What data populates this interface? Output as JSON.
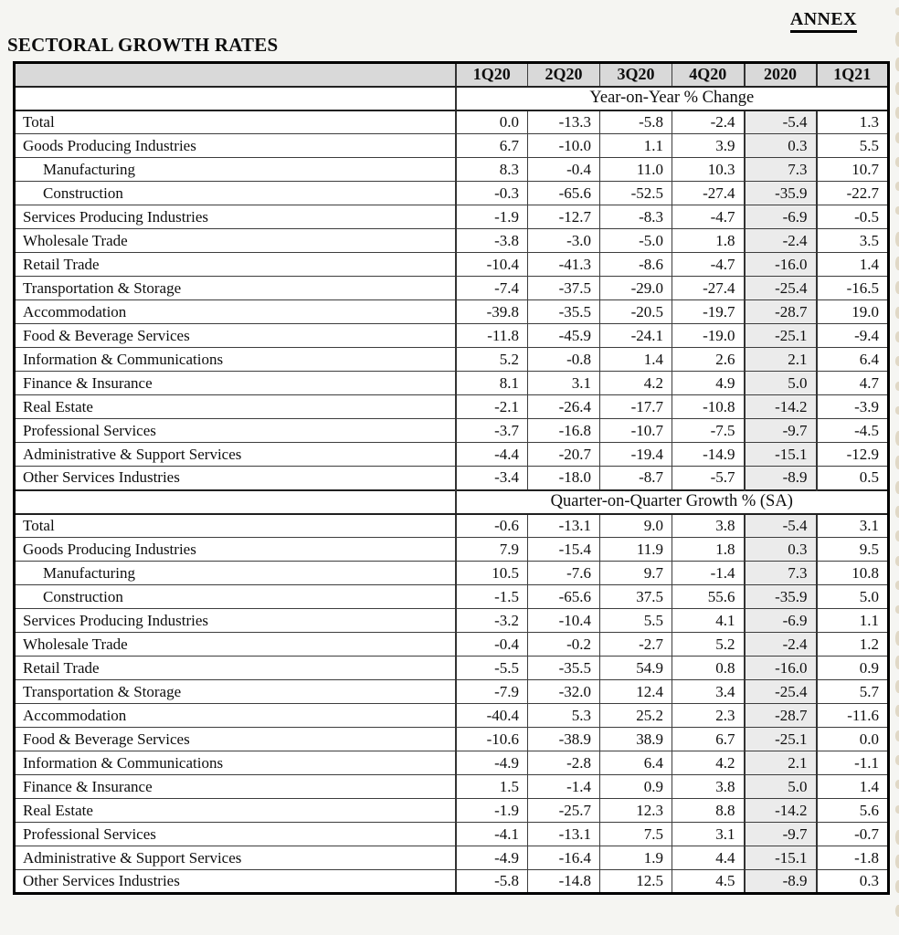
{
  "page": {
    "annex_label": "ANNEX",
    "title": "SECTORAL GROWTH RATES"
  },
  "table": {
    "columns": [
      "1Q20",
      "2Q20",
      "3Q20",
      "4Q20",
      "2020",
      "1Q21"
    ],
    "highlight_column": "2020",
    "sections": [
      {
        "header": "Year-on-Year % Change",
        "rows": [
          {
            "label": "Total",
            "indent": false,
            "values": [
              "0.0",
              "-13.3",
              "-5.8",
              "-2.4",
              "-5.4",
              "1.3"
            ]
          },
          {
            "label": "Goods Producing Industries",
            "indent": false,
            "values": [
              "6.7",
              "-10.0",
              "1.1",
              "3.9",
              "0.3",
              "5.5"
            ]
          },
          {
            "label": "Manufacturing",
            "indent": true,
            "values": [
              "8.3",
              "-0.4",
              "11.0",
              "10.3",
              "7.3",
              "10.7"
            ]
          },
          {
            "label": "Construction",
            "indent": true,
            "values": [
              "-0.3",
              "-65.6",
              "-52.5",
              "-27.4",
              "-35.9",
              "-22.7"
            ]
          },
          {
            "label": "Services Producing Industries",
            "indent": false,
            "values": [
              "-1.9",
              "-12.7",
              "-8.3",
              "-4.7",
              "-6.9",
              "-0.5"
            ]
          },
          {
            "label": "Wholesale Trade",
            "indent": false,
            "values": [
              "-3.8",
              "-3.0",
              "-5.0",
              "1.8",
              "-2.4",
              "3.5"
            ]
          },
          {
            "label": "Retail Trade",
            "indent": false,
            "values": [
              "-10.4",
              "-41.3",
              "-8.6",
              "-4.7",
              "-16.0",
              "1.4"
            ]
          },
          {
            "label": "Transportation & Storage",
            "indent": false,
            "values": [
              "-7.4",
              "-37.5",
              "-29.0",
              "-27.4",
              "-25.4",
              "-16.5"
            ]
          },
          {
            "label": "Accommodation",
            "indent": false,
            "values": [
              "-39.8",
              "-35.5",
              "-20.5",
              "-19.7",
              "-28.7",
              "19.0"
            ]
          },
          {
            "label": "Food & Beverage Services",
            "indent": false,
            "values": [
              "-11.8",
              "-45.9",
              "-24.1",
              "-19.0",
              "-25.1",
              "-9.4"
            ]
          },
          {
            "label": "Information & Communications",
            "indent": false,
            "values": [
              "5.2",
              "-0.8",
              "1.4",
              "2.6",
              "2.1",
              "6.4"
            ]
          },
          {
            "label": "Finance & Insurance",
            "indent": false,
            "values": [
              "8.1",
              "3.1",
              "4.2",
              "4.9",
              "5.0",
              "4.7"
            ]
          },
          {
            "label": "Real Estate",
            "indent": false,
            "values": [
              "-2.1",
              "-26.4",
              "-17.7",
              "-10.8",
              "-14.2",
              "-3.9"
            ]
          },
          {
            "label": "Professional Services",
            "indent": false,
            "values": [
              "-3.7",
              "-16.8",
              "-10.7",
              "-7.5",
              "-9.7",
              "-4.5"
            ]
          },
          {
            "label": "Administrative & Support Services",
            "indent": false,
            "values": [
              "-4.4",
              "-20.7",
              "-19.4",
              "-14.9",
              "-15.1",
              "-12.9"
            ]
          },
          {
            "label": "Other Services Industries",
            "indent": false,
            "values": [
              "-3.4",
              "-18.0",
              "-8.7",
              "-5.7",
              "-8.9",
              "0.5"
            ]
          }
        ]
      },
      {
        "header": "Quarter-on-Quarter Growth % (SA)",
        "rows": [
          {
            "label": "Total",
            "indent": false,
            "values": [
              "-0.6",
              "-13.1",
              "9.0",
              "3.8",
              "-5.4",
              "3.1"
            ]
          },
          {
            "label": "Goods Producing Industries",
            "indent": false,
            "values": [
              "7.9",
              "-15.4",
              "11.9",
              "1.8",
              "0.3",
              "9.5"
            ]
          },
          {
            "label": "Manufacturing",
            "indent": true,
            "values": [
              "10.5",
              "-7.6",
              "9.7",
              "-1.4",
              "7.3",
              "10.8"
            ]
          },
          {
            "label": "Construction",
            "indent": true,
            "values": [
              "-1.5",
              "-65.6",
              "37.5",
              "55.6",
              "-35.9",
              "5.0"
            ]
          },
          {
            "label": "Services Producing Industries",
            "indent": false,
            "values": [
              "-3.2",
              "-10.4",
              "5.5",
              "4.1",
              "-6.9",
              "1.1"
            ]
          },
          {
            "label": "Wholesale Trade",
            "indent": false,
            "values": [
              "-0.4",
              "-0.2",
              "-2.7",
              "5.2",
              "-2.4",
              "1.2"
            ]
          },
          {
            "label": "Retail Trade",
            "indent": false,
            "values": [
              "-5.5",
              "-35.5",
              "54.9",
              "0.8",
              "-16.0",
              "0.9"
            ]
          },
          {
            "label": "Transportation & Storage",
            "indent": false,
            "values": [
              "-7.9",
              "-32.0",
              "12.4",
              "3.4",
              "-25.4",
              "5.7"
            ]
          },
          {
            "label": "Accommodation",
            "indent": false,
            "values": [
              "-40.4",
              "5.3",
              "25.2",
              "2.3",
              "-28.7",
              "-11.6"
            ]
          },
          {
            "label": "Food & Beverage Services",
            "indent": false,
            "values": [
              "-10.6",
              "-38.9",
              "38.9",
              "6.7",
              "-25.1",
              "0.0"
            ]
          },
          {
            "label": "Information & Communications",
            "indent": false,
            "values": [
              "-4.9",
              "-2.8",
              "6.4",
              "4.2",
              "2.1",
              "-1.1"
            ]
          },
          {
            "label": "Finance & Insurance",
            "indent": false,
            "values": [
              "1.5",
              "-1.4",
              "0.9",
              "3.8",
              "5.0",
              "1.4"
            ]
          },
          {
            "label": "Real Estate",
            "indent": false,
            "values": [
              "-1.9",
              "-25.7",
              "12.3",
              "8.8",
              "-14.2",
              "5.6"
            ]
          },
          {
            "label": "Professional Services",
            "indent": false,
            "values": [
              "-4.1",
              "-13.1",
              "7.5",
              "3.1",
              "-9.7",
              "-0.7"
            ]
          },
          {
            "label": "Administrative & Support Services",
            "indent": false,
            "values": [
              "-4.9",
              "-16.4",
              "1.9",
              "4.4",
              "-15.1",
              "-1.8"
            ]
          },
          {
            "label": "Other Services Industries",
            "indent": false,
            "values": [
              "-5.8",
              "-14.8",
              "12.5",
              "4.5",
              "-8.9",
              "0.3"
            ]
          }
        ]
      }
    ]
  },
  "colors": {
    "column_header_bg": "#d9d9d9",
    "annual_column_bg": "#ebebeb",
    "outer_border": "#000000",
    "page_bg": "#f5f5f2"
  }
}
